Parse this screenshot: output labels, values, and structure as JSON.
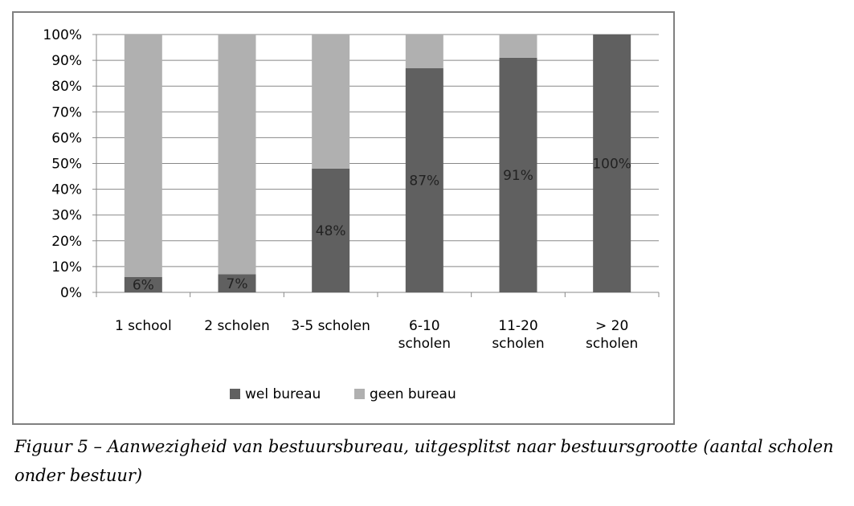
{
  "chart_data": {
    "type": "bar",
    "stacked": true,
    "categories": [
      [
        "1 school"
      ],
      [
        "2 scholen"
      ],
      [
        "3-5 scholen"
      ],
      [
        "6-10",
        "scholen"
      ],
      [
        "11-20",
        "scholen"
      ],
      [
        "> 20",
        "scholen"
      ]
    ],
    "series": [
      {
        "name": "wel bureau",
        "color": "#606060",
        "values": [
          6,
          7,
          48,
          87,
          91,
          100
        ]
      },
      {
        "name": "geen bureau",
        "color": "#b0b0b0",
        "values": [
          94,
          93,
          52,
          13,
          9,
          0
        ]
      }
    ],
    "data_labels": [
      "6%",
      "7%",
      "48%",
      "87%",
      "91%",
      "100%"
    ],
    "yticks": [
      "0%",
      "10%",
      "20%",
      "30%",
      "40%",
      "50%",
      "60%",
      "70%",
      "80%",
      "90%",
      "100%"
    ],
    "ylim": [
      0,
      100
    ],
    "grid": true,
    "legend": "bottom"
  },
  "caption": "Figuur 5 – Aanwezigheid van bestuursbureau, uitgesplitst naar bestuursgrootte (aantal scholen onder bestuur)"
}
